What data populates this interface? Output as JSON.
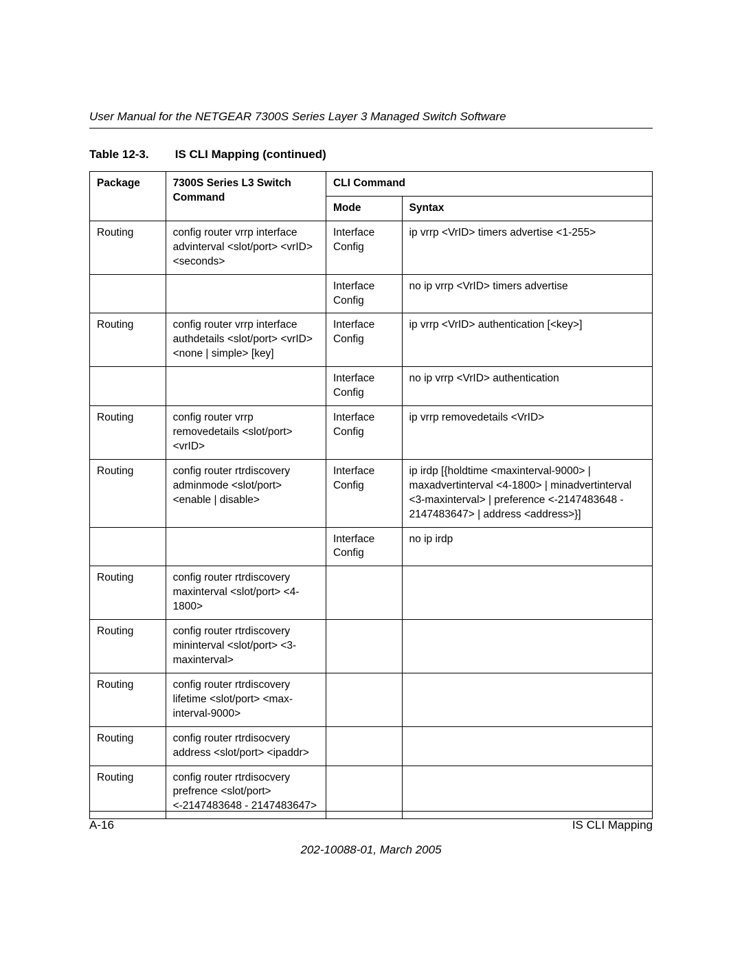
{
  "header": {
    "doc_title": "User Manual for the NETGEAR 7300S Series Layer 3 Managed Switch Software"
  },
  "table": {
    "caption_number": "Table 12-3.",
    "caption_text": "IS CLI Mapping  (continued)",
    "columns": {
      "package": "Package",
      "command": "7300S Series L3 Switch Command",
      "cli_group": "CLI Command",
      "mode": "Mode",
      "syntax": "Syntax"
    },
    "rows": [
      {
        "package": "Routing",
        "command": "config router vrrp interface advinterval <slot/port> <vrID> <seconds>",
        "mode": "Interface Config",
        "syntax": "ip vrrp <VrID> timers advertise <1-255>"
      },
      {
        "package": "",
        "command": "",
        "mode": "Interface Config",
        "syntax": "no ip vrrp <VrID> timers advertise"
      },
      {
        "package": "Routing",
        "command": "config router vrrp interface authdetails <slot/port> <vrID> <none | simple> [key]",
        "mode": "Interface Config",
        "syntax": "ip vrrp <VrID> authentication [<key>]"
      },
      {
        "package": "",
        "command": "",
        "mode": "Interface Config",
        "syntax": "no ip vrrp <VrID> authentication"
      },
      {
        "package": "Routing",
        "command": "config router vrrp removedetails <slot/port> <vrID>",
        "mode": "Interface Config",
        "syntax": "ip vrrp removedetails <VrID>"
      },
      {
        "package": "Routing",
        "command": "config router rtrdiscovery adminmode <slot/port> <enable | disable>",
        "mode": "Interface Config",
        "syntax": "ip irdp [{holdtime <maxinterval-9000> | maxadvertinterval <4-1800> | minadvertinterval <3-maxinterval> | preference <-2147483648 - 2147483647> | address <address>}]"
      },
      {
        "package": "",
        "command": "",
        "mode": "Interface Config",
        "syntax": "no ip irdp"
      },
      {
        "package": "Routing",
        "command": "config router rtrdiscovery maxinterval <slot/port> <4-1800>",
        "mode": "",
        "syntax": ""
      },
      {
        "package": "Routing",
        "command": "config router rtrdiscovery mininterval <slot/port> <3-maxinterval>",
        "mode": "",
        "syntax": ""
      },
      {
        "package": "Routing",
        "command": "config router rtrdiscovery lifetime <slot/port> <max-interval-9000>",
        "mode": "",
        "syntax": ""
      },
      {
        "package": "Routing",
        "command": "config router rtrdisocvery address <slot/port> <ipaddr>",
        "mode": "",
        "syntax": ""
      },
      {
        "package": "Routing",
        "command": "config router rtrdisocvery prefrence <slot/port> <-2147483648 - 2147483647>",
        "mode": "",
        "syntax": ""
      }
    ]
  },
  "footer": {
    "page_number": "A-16",
    "section": "IS CLI Mapping",
    "date_line": "202-10088-01, March 2005"
  }
}
